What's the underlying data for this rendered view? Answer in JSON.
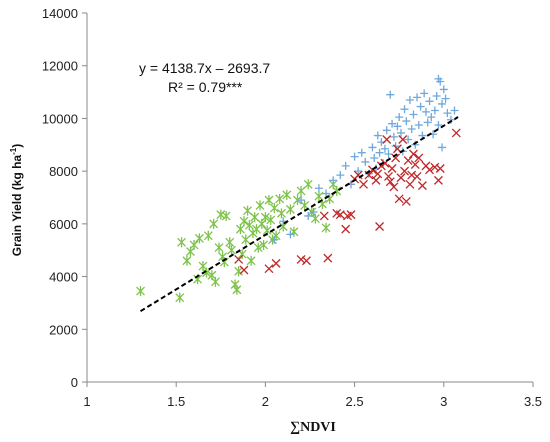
{
  "chart_data": {
    "type": "scatter",
    "title": "",
    "xlabel": "∑NDVI",
    "ylabel_main": "Grain Yield (kg ha",
    "ylabel_sup": "-1",
    "ylabel_close": ")",
    "xlim": [
      1,
      3.5
    ],
    "ylim": [
      0,
      14000
    ],
    "xticks": [
      1,
      1.5,
      2,
      2.5,
      3,
      3.5
    ],
    "xtick_labels": [
      "1",
      "1.5",
      "2",
      "2.5",
      "3",
      "3.5"
    ],
    "yticks": [
      0,
      2000,
      4000,
      6000,
      8000,
      10000,
      12000,
      14000
    ],
    "ytick_labels": [
      "0",
      "2000",
      "4000",
      "6000",
      "8000",
      "10000",
      "12000",
      "14000"
    ],
    "grid": false,
    "equation": "y = 4138.7x – 2693.7",
    "r2_label": "R² = 0.79***",
    "trendline": {
      "slope": 4138.7,
      "intercept": -2693.7,
      "x_range": [
        1.3,
        3.08
      ],
      "color": "#000000",
      "style": "dashed"
    },
    "series": [
      {
        "marker": "asterisk",
        "color": "#7dc34a",
        "points": [
          [
            1.3,
            3450
          ],
          [
            1.52,
            3200
          ],
          [
            1.53,
            5300
          ],
          [
            1.56,
            4600
          ],
          [
            1.58,
            4950
          ],
          [
            1.6,
            5200
          ],
          [
            1.62,
            3900
          ],
          [
            1.63,
            5450
          ],
          [
            1.65,
            4400
          ],
          [
            1.67,
            4150
          ],
          [
            1.68,
            5550
          ],
          [
            1.7,
            4050
          ],
          [
            1.71,
            6000
          ],
          [
            1.72,
            3800
          ],
          [
            1.74,
            5100
          ],
          [
            1.75,
            6350
          ],
          [
            1.76,
            4750
          ],
          [
            1.77,
            4550
          ],
          [
            1.78,
            6300
          ],
          [
            1.8,
            5300
          ],
          [
            1.81,
            5000
          ],
          [
            1.83,
            3700
          ],
          [
            1.84,
            3500
          ],
          [
            1.85,
            4200
          ],
          [
            1.86,
            5800
          ],
          [
            1.87,
            4850
          ],
          [
            1.88,
            6100
          ],
          [
            1.89,
            5400
          ],
          [
            1.9,
            6500
          ],
          [
            1.91,
            5950
          ],
          [
            1.92,
            4600
          ],
          [
            1.93,
            5650
          ],
          [
            1.94,
            6250
          ],
          [
            1.95,
            5800
          ],
          [
            1.96,
            5100
          ],
          [
            1.97,
            6700
          ],
          [
            1.98,
            6000
          ],
          [
            1.99,
            5200
          ],
          [
            2.0,
            6250
          ],
          [
            2.01,
            5750
          ],
          [
            2.02,
            6900
          ],
          [
            2.03,
            6150
          ],
          [
            2.04,
            5400
          ],
          [
            2.05,
            6600
          ],
          [
            2.06,
            5550
          ],
          [
            2.08,
            6950
          ],
          [
            2.09,
            6400
          ],
          [
            2.1,
            5900
          ],
          [
            2.12,
            7100
          ],
          [
            2.14,
            6550
          ],
          [
            2.16,
            5700
          ],
          [
            2.18,
            6900
          ],
          [
            2.2,
            7250
          ],
          [
            2.22,
            6700
          ],
          [
            2.24,
            7500
          ],
          [
            2.26,
            6450
          ],
          [
            2.28,
            6200
          ],
          [
            2.3,
            7050
          ],
          [
            2.32,
            6750
          ],
          [
            2.34,
            5850
          ],
          [
            2.36,
            6950
          ],
          [
            2.38,
            7500
          ],
          [
            2.4,
            7250
          ]
        ]
      },
      {
        "marker": "plus",
        "color": "#6fa8dc",
        "points": [
          [
            2.05,
            5400
          ],
          [
            2.1,
            6100
          ],
          [
            2.14,
            5600
          ],
          [
            2.2,
            6900
          ],
          [
            2.24,
            6300
          ],
          [
            2.27,
            6450
          ],
          [
            2.3,
            7350
          ],
          [
            2.34,
            7150
          ],
          [
            2.38,
            7650
          ],
          [
            2.42,
            7850
          ],
          [
            2.45,
            8200
          ],
          [
            2.48,
            7500
          ],
          [
            2.5,
            8550
          ],
          [
            2.52,
            8000
          ],
          [
            2.54,
            8700
          ],
          [
            2.56,
            8350
          ],
          [
            2.58,
            7900
          ],
          [
            2.6,
            8900
          ],
          [
            2.61,
            8500
          ],
          [
            2.62,
            8100
          ],
          [
            2.63,
            9350
          ],
          [
            2.64,
            8700
          ],
          [
            2.65,
            9100
          ],
          [
            2.66,
            8300
          ],
          [
            2.67,
            8850
          ],
          [
            2.68,
            9550
          ],
          [
            2.69,
            8650
          ],
          [
            2.7,
            10900
          ],
          [
            2.71,
            9800
          ],
          [
            2.72,
            9300
          ],
          [
            2.73,
            8950
          ],
          [
            2.74,
            9700
          ],
          [
            2.75,
            10050
          ],
          [
            2.76,
            9450
          ],
          [
            2.77,
            8750
          ],
          [
            2.78,
            10350
          ],
          [
            2.79,
            9900
          ],
          [
            2.8,
            9200
          ],
          [
            2.81,
            10700
          ],
          [
            2.82,
            9600
          ],
          [
            2.83,
            10150
          ],
          [
            2.84,
            9000
          ],
          [
            2.85,
            10800
          ],
          [
            2.86,
            9750
          ],
          [
            2.87,
            10450
          ],
          [
            2.88,
            9350
          ],
          [
            2.89,
            10950
          ],
          [
            2.9,
            10250
          ],
          [
            2.91,
            9850
          ],
          [
            2.92,
            10650
          ],
          [
            2.93,
            10050
          ],
          [
            2.94,
            9400
          ],
          [
            2.95,
            10300
          ],
          [
            2.96,
            10850
          ],
          [
            2.97,
            9750
          ],
          [
            2.98,
            11400
          ],
          [
            2.99,
            10550
          ],
          [
            3.0,
            11100
          ],
          [
            3.01,
            10750
          ],
          [
            3.02,
            10200
          ],
          [
            3.04,
            9950
          ],
          [
            3.06,
            10300
          ],
          [
            2.97,
            11500
          ],
          [
            2.99,
            8900
          ]
        ]
      },
      {
        "marker": "x",
        "color": "#c0282a",
        "points": [
          [
            1.85,
            4650
          ],
          [
            1.88,
            4250
          ],
          [
            2.02,
            4300
          ],
          [
            2.06,
            4500
          ],
          [
            2.2,
            4650
          ],
          [
            2.23,
            4600
          ],
          [
            2.33,
            6300
          ],
          [
            2.35,
            4700
          ],
          [
            2.4,
            6400
          ],
          [
            2.42,
            6350
          ],
          [
            2.45,
            5800
          ],
          [
            2.46,
            6300
          ],
          [
            2.48,
            6350
          ],
          [
            2.5,
            7700
          ],
          [
            2.52,
            7850
          ],
          [
            2.55,
            7500
          ],
          [
            2.58,
            7850
          ],
          [
            2.6,
            8050
          ],
          [
            2.62,
            7650
          ],
          [
            2.63,
            7900
          ],
          [
            2.64,
            5900
          ],
          [
            2.65,
            8200
          ],
          [
            2.67,
            8300
          ],
          [
            2.68,
            9200
          ],
          [
            2.69,
            7800
          ],
          [
            2.7,
            7600
          ],
          [
            2.71,
            8100
          ],
          [
            2.72,
            7400
          ],
          [
            2.73,
            8500
          ],
          [
            2.74,
            8850
          ],
          [
            2.75,
            6950
          ],
          [
            2.76,
            7750
          ],
          [
            2.77,
            9200
          ],
          [
            2.78,
            8000
          ],
          [
            2.79,
            6850
          ],
          [
            2.8,
            8400
          ],
          [
            2.81,
            7500
          ],
          [
            2.82,
            7850
          ],
          [
            2.83,
            8650
          ],
          [
            2.84,
            8250
          ],
          [
            2.85,
            7800
          ],
          [
            2.86,
            8500
          ],
          [
            2.88,
            7450
          ],
          [
            2.9,
            8200
          ],
          [
            2.92,
            8050
          ],
          [
            2.95,
            8150
          ],
          [
            2.97,
            7650
          ],
          [
            2.98,
            8100
          ],
          [
            3.07,
            9450
          ]
        ]
      }
    ]
  }
}
